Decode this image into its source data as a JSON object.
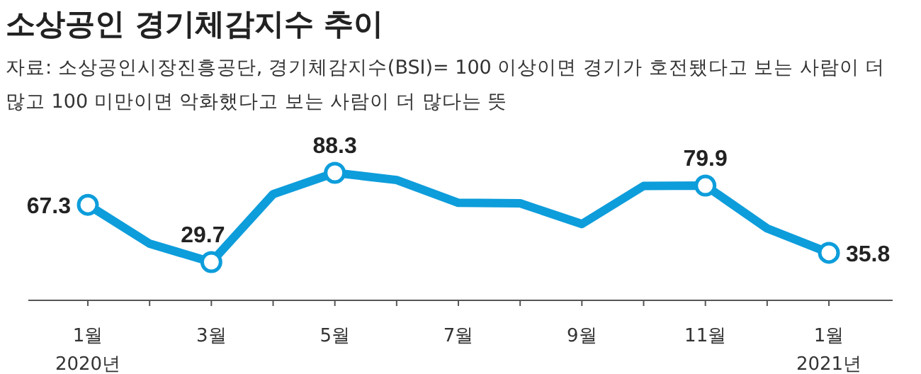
{
  "chart_data": {
    "type": "line",
    "title": "소상공인 경기체감지수 추이",
    "subtitle": "자료: 소상공인시장진흥공단, 경기체감지수(BSI)= 100 이상이면 경기가 호전됐다고 보는 사람이 더 많고 100 미만이면 악화했다고 보는 사람이 더 많다는 뜻",
    "categories": [
      "1월 2020년",
      null,
      "3월",
      null,
      "5월",
      null,
      "7월",
      null,
      "9월",
      null,
      "11월",
      null,
      "1월 2021년"
    ],
    "series": [
      {
        "color": "#0d9ddb",
        "values": [
          67.3,
          41.8,
          29.7,
          74.3,
          88.3,
          83.6,
          68.6,
          68.3,
          54.7,
          79.7,
          79.9,
          51.8,
          35.8
        ],
        "value_labels": [
          "67.3",
          null,
          "29.7",
          null,
          "88.3",
          null,
          null,
          null,
          null,
          null,
          "79.9",
          null,
          "35.8"
        ]
      }
    ],
    "line_style": "solid"
  }
}
